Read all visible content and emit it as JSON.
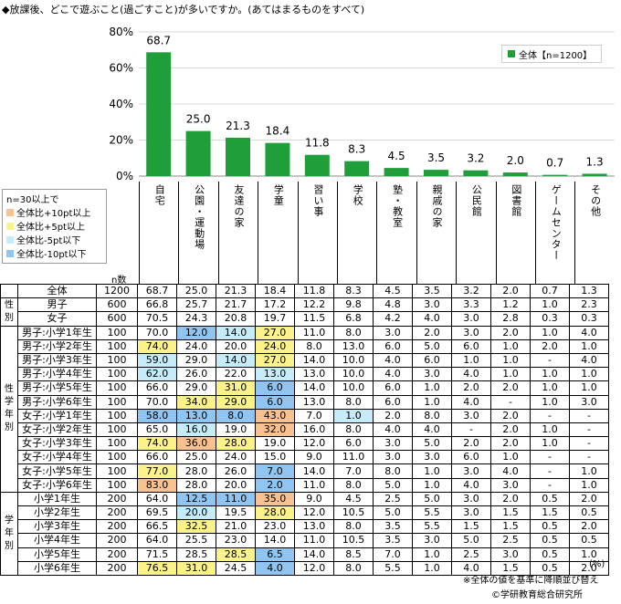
{
  "title": "◆放課後、どこで遊ぶこと(過ごすこと)が多いですか。(あてはまるものをすべて)",
  "legend_label": "全体【n=1200】",
  "colors": {
    "bar": "#1f9e3a",
    "plus10": "#f7c28f",
    "plus5": "#fbf38a",
    "minus5": "#c5ecf8",
    "minus10": "#8fc5f0"
  },
  "key": {
    "header": "n=30以上で",
    "items": [
      {
        "label": "全体比+10pt以上",
        "color": "#f7c28f"
      },
      {
        "label": "全体比+5pt以上",
        "color": "#fbf38a"
      },
      {
        "label": "全体比-5pt以下",
        "color": "#c5ecf8"
      },
      {
        "label": "全体比-10pt以下",
        "color": "#8fc5f0"
      }
    ]
  },
  "n_label": "n数",
  "chart_data": {
    "type": "bar",
    "title": "◆放課後、どこで遊ぶこと(過ごすこと)が多いですか。(あてはまるものをすべて)",
    "categories": [
      "自宅",
      "公園・運動場",
      "友達の家",
      "学童",
      "習い事",
      "学校",
      "塾・教室",
      "親戚の家",
      "公民館",
      "図書館",
      "ゲームセンター",
      "その他"
    ],
    "series": [
      {
        "name": "全体【n=1200】",
        "values": [
          68.7,
          25.0,
          21.3,
          18.4,
          11.8,
          8.3,
          4.5,
          3.5,
          3.2,
          2.0,
          0.7,
          1.3
        ]
      }
    ],
    "ylim": [
      0,
      80
    ],
    "yticks": [
      "0%",
      "20%",
      "40%",
      "60%",
      "80%"
    ],
    "legend": "top-right"
  },
  "table": {
    "groups": [
      {
        "label": "",
        "rows": [
          {
            "label": "全体",
            "n": "1200",
            "values": [
              "68.7",
              "25.0",
              "21.3",
              "18.4",
              "11.8",
              "8.3",
              "4.5",
              "3.5",
              "3.2",
              "2.0",
              "0.7",
              "1.3"
            ],
            "hl": [
              "",
              "",
              "",
              "",
              "",
              "",
              "",
              "",
              "",
              "",
              "",
              ""
            ]
          }
        ]
      },
      {
        "label": "性別",
        "rows": [
          {
            "label": "男子",
            "n": "600",
            "values": [
              "66.8",
              "25.7",
              "21.7",
              "17.2",
              "12.2",
              "9.8",
              "4.8",
              "3.0",
              "3.3",
              "1.2",
              "1.0",
              "2.3"
            ],
            "hl": [
              "",
              "",
              "",
              "",
              "",
              "",
              "",
              "",
              "",
              "",
              "",
              ""
            ]
          },
          {
            "label": "女子",
            "n": "600",
            "values": [
              "70.5",
              "24.3",
              "20.8",
              "19.7",
              "11.5",
              "6.8",
              "4.2",
              "4.0",
              "3.0",
              "2.8",
              "0.3",
              "0.3"
            ],
            "hl": [
              "",
              "",
              "",
              "",
              "",
              "",
              "",
              "",
              "",
              "",
              "",
              ""
            ]
          }
        ]
      },
      {
        "label": "性学年別",
        "rows": [
          {
            "label": "男子:小学1年生",
            "n": "100",
            "values": [
              "70.0",
              "12.0",
              "14.0",
              "27.0",
              "11.0",
              "8.0",
              "3.0",
              "2.0",
              "3.0",
              "2.0",
              "1.0",
              "4.0"
            ],
            "hl": [
              "",
              "m10",
              "m5",
              "p5",
              "",
              "",
              "",
              "",
              "",
              "",
              "",
              ""
            ]
          },
          {
            "label": "男子:小学2年生",
            "n": "100",
            "values": [
              "74.0",
              "24.0",
              "20.0",
              "24.0",
              "8.0",
              "13.0",
              "6.0",
              "5.0",
              "6.0",
              "1.0",
              "2.0",
              "1.0"
            ],
            "hl": [
              "p5",
              "",
              "",
              "p5",
              "",
              "",
              "",
              "",
              "",
              "",
              "",
              ""
            ]
          },
          {
            "label": "男子:小学3年生",
            "n": "100",
            "values": [
              "59.0",
              "29.0",
              "14.0",
              "27.0",
              "14.0",
              "10.0",
              "4.0",
              "6.0",
              "1.0",
              "1.0",
              "-",
              "4.0"
            ],
            "hl": [
              "m5",
              "",
              "m5",
              "p5",
              "",
              "",
              "",
              "",
              "",
              "",
              "",
              ""
            ]
          },
          {
            "label": "男子:小学4年生",
            "n": "100",
            "values": [
              "62.0",
              "26.0",
              "22.0",
              "13.0",
              "13.0",
              "10.0",
              "4.0",
              "3.0",
              "4.0",
              "1.0",
              "1.0",
              "1.0"
            ],
            "hl": [
              "m5",
              "",
              "",
              "m5",
              "",
              "",
              "",
              "",
              "",
              "",
              "",
              ""
            ]
          },
          {
            "label": "男子:小学5年生",
            "n": "100",
            "values": [
              "66.0",
              "29.0",
              "31.0",
              "6.0",
              "14.0",
              "10.0",
              "6.0",
              "1.0",
              "2.0",
              "2.0",
              "1.0",
              "1.0"
            ],
            "hl": [
              "",
              "",
              "p5",
              "m10",
              "",
              "",
              "",
              "",
              "",
              "",
              "",
              ""
            ]
          },
          {
            "label": "男子:小学6年生",
            "n": "100",
            "values": [
              "70.0",
              "34.0",
              "29.0",
              "6.0",
              "13.0",
              "8.0",
              "6.0",
              "1.0",
              "4.0",
              "-",
              "1.0",
              "3.0"
            ],
            "hl": [
              "",
              "p5",
              "p5",
              "m10",
              "",
              "",
              "",
              "",
              "",
              "",
              "",
              ""
            ]
          },
          {
            "label": "女子:小学1年生",
            "n": "100",
            "values": [
              "58.0",
              "13.0",
              "8.0",
              "43.0",
              "7.0",
              "1.0",
              "2.0",
              "8.0",
              "3.0",
              "2.0",
              "-",
              "-"
            ],
            "hl": [
              "m10",
              "m10",
              "m10",
              "p10",
              "",
              "m5",
              "",
              "",
              "",
              "",
              "",
              ""
            ]
          },
          {
            "label": "女子:小学2年生",
            "n": "100",
            "values": [
              "65.0",
              "16.0",
              "19.0",
              "32.0",
              "16.0",
              "8.0",
              "4.0",
              "4.0",
              "-",
              "2.0",
              "1.0",
              "-"
            ],
            "hl": [
              "",
              "m5",
              "",
              "p10",
              "",
              "",
              "",
              "",
              "",
              "",
              "",
              ""
            ]
          },
          {
            "label": "女子:小学3年生",
            "n": "100",
            "values": [
              "74.0",
              "36.0",
              "28.0",
              "19.0",
              "12.0",
              "6.0",
              "3.0",
              "5.0",
              "2.0",
              "2.0",
              "1.0",
              "-"
            ],
            "hl": [
              "p5",
              "p10",
              "p5",
              "",
              "",
              "",
              "",
              "",
              "",
              "",
              "",
              ""
            ]
          },
          {
            "label": "女子:小学4年生",
            "n": "100",
            "values": [
              "66.0",
              "25.0",
              "24.0",
              "15.0",
              "9.0",
              "11.0",
              "3.0",
              "3.0",
              "6.0",
              "1.0",
              "-",
              "-"
            ],
            "hl": [
              "",
              "",
              "",
              "",
              "",
              "",
              "",
              "",
              "",
              "",
              "",
              ""
            ]
          },
          {
            "label": "女子:小学5年生",
            "n": "100",
            "values": [
              "77.0",
              "28.0",
              "26.0",
              "7.0",
              "14.0",
              "7.0",
              "8.0",
              "1.0",
              "3.0",
              "4.0",
              "-",
              "1.0"
            ],
            "hl": [
              "p5",
              "",
              "",
              "m10",
              "",
              "",
              "",
              "",
              "",
              "",
              "",
              ""
            ]
          },
          {
            "label": "女子:小学6年生",
            "n": "100",
            "values": [
              "83.0",
              "28.0",
              "20.0",
              "2.0",
              "11.0",
              "8.0",
              "5.0",
              "1.0",
              "4.0",
              "3.0",
              "-",
              "1.0"
            ],
            "hl": [
              "p10",
              "",
              "",
              "m10",
              "",
              "",
              "",
              "",
              "",
              "",
              "",
              ""
            ]
          }
        ]
      },
      {
        "label": "学年別",
        "rows": [
          {
            "label": "小学1年生",
            "n": "200",
            "values": [
              "64.0",
              "12.5",
              "11.0",
              "35.0",
              "9.0",
              "4.5",
              "2.5",
              "5.0",
              "3.0",
              "2.0",
              "0.5",
              "2.0"
            ],
            "hl": [
              "",
              "m10",
              "m10",
              "p10",
              "",
              "",
              "",
              "",
              "",
              "",
              "",
              ""
            ]
          },
          {
            "label": "小学2年生",
            "n": "200",
            "values": [
              "69.5",
              "20.0",
              "19.5",
              "28.0",
              "12.0",
              "10.5",
              "5.0",
              "5.5",
              "3.0",
              "1.5",
              "1.5",
              "0.5"
            ],
            "hl": [
              "",
              "m5",
              "",
              "p5",
              "",
              "",
              "",
              "",
              "",
              "",
              "",
              ""
            ]
          },
          {
            "label": "小学3年生",
            "n": "200",
            "values": [
              "66.5",
              "32.5",
              "21.0",
              "23.0",
              "13.0",
              "8.0",
              "3.5",
              "5.5",
              "1.5",
              "1.5",
              "0.5",
              "2.0"
            ],
            "hl": [
              "",
              "p5",
              "",
              "",
              "",
              "",
              "",
              "",
              "",
              "",
              "",
              ""
            ]
          },
          {
            "label": "小学4年生",
            "n": "200",
            "values": [
              "64.0",
              "25.5",
              "23.0",
              "14.0",
              "11.0",
              "10.5",
              "3.5",
              "3.0",
              "5.0",
              "2.5",
              "0.5",
              "0.5"
            ],
            "hl": [
              "",
              "",
              "",
              "",
              "",
              "",
              "",
              "",
              "",
              "",
              "",
              ""
            ]
          },
          {
            "label": "小学5年生",
            "n": "200",
            "values": [
              "71.5",
              "28.5",
              "28.5",
              "6.5",
              "14.0",
              "8.5",
              "7.0",
              "1.0",
              "2.5",
              "3.0",
              "0.5",
              "1.0"
            ],
            "hl": [
              "",
              "",
              "p5",
              "m10",
              "",
              "",
              "",
              "",
              "",
              "",
              "",
              ""
            ]
          },
          {
            "label": "小学6年生",
            "n": "200",
            "values": [
              "76.5",
              "31.0",
              "24.5",
              "4.0",
              "12.0",
              "8.0",
              "5.5",
              "1.0",
              "4.0",
              "1.5",
              "0.5",
              "2.0"
            ],
            "hl": [
              "p5",
              "p5",
              "",
              "m10",
              "",
              "",
              "",
              "",
              "",
              "",
              "",
              ""
            ]
          }
        ]
      }
    ]
  },
  "footer": {
    "unit": "(%)",
    "note": "※全体の値を基準に降順並び替え",
    "copyright": "©学研教育総合研究所"
  }
}
